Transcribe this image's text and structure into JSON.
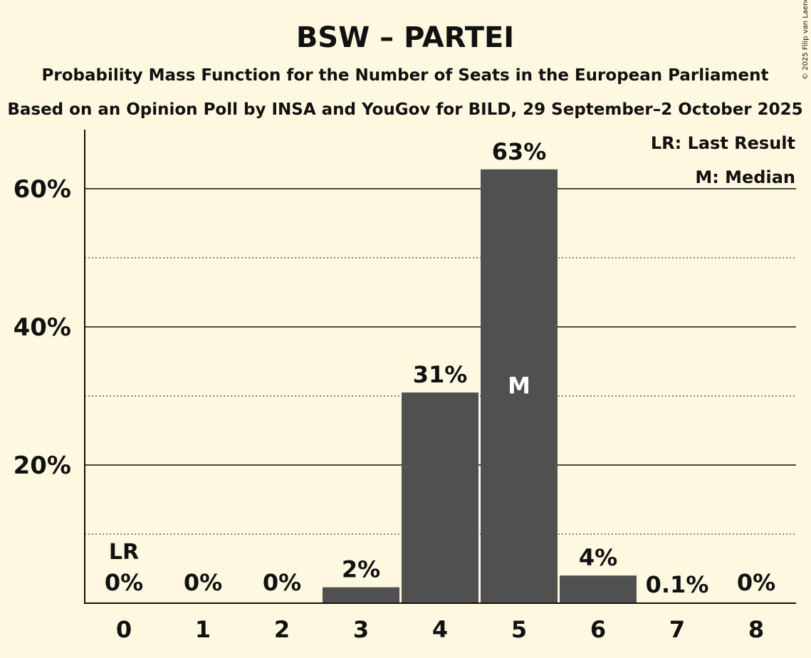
{
  "copyright": "© 2025 Filip van Laenen",
  "chart_data": {
    "type": "bar",
    "title": "BSW – PARTEI",
    "subtitle": "Probability Mass Function for the Number of Seats in the European Parliament",
    "subtitle2": "Based on an Opinion Poll by INSA and YouGov for BILD, 29 September–2 October 2025",
    "categories": [
      "0",
      "1",
      "2",
      "3",
      "4",
      "5",
      "6",
      "7",
      "8"
    ],
    "values": [
      0,
      0,
      0,
      2.3,
      30.5,
      62.8,
      4.0,
      0.1,
      0
    ],
    "data_labels": [
      "0%",
      "0%",
      "0%",
      "2%",
      "31%",
      "63%",
      "4%",
      "0.1%",
      "0%"
    ],
    "ylim": [
      0,
      68
    ],
    "yticks": [
      {
        "value": 20,
        "label": "20%"
      },
      {
        "value": 40,
        "label": "40%"
      },
      {
        "value": 60,
        "label": "60%"
      }
    ],
    "minor_gridlines": [
      10,
      30,
      50
    ],
    "last_result": {
      "category": "0",
      "label": "LR"
    },
    "median": {
      "category": "5",
      "label": "M"
    },
    "legend": [
      "LR: Last Result",
      "M: Median"
    ],
    "legend_position": "top-right",
    "bar_color": "#505050",
    "background": "#fff8e1"
  }
}
